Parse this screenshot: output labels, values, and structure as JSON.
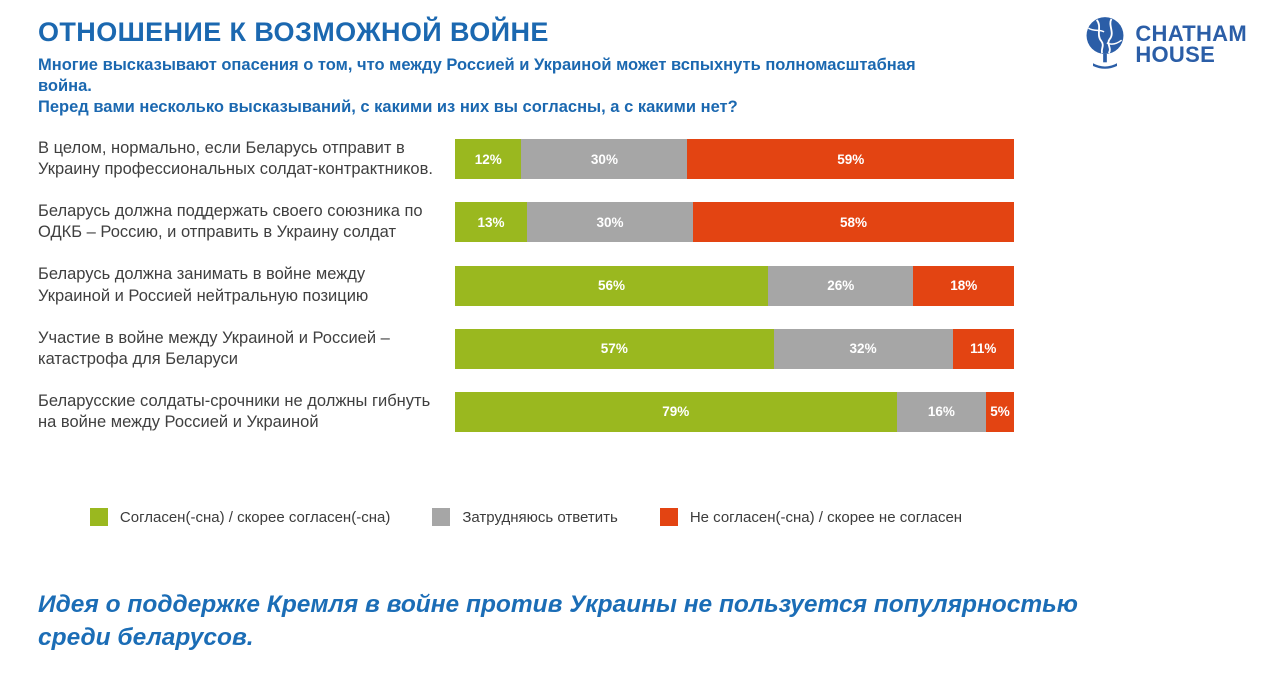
{
  "header": {
    "title": "ОТНОШЕНИЕ К ВОЗМОЖНОЙ ВОЙНЕ",
    "subtitle_line1": "Многие высказывают опасения о том, что между Россией и Украиной может вспыхнуть полномасштабная война.",
    "subtitle_line2": "Перед вами несколько высказываний, с какими из них вы согласны, а с какими нет?"
  },
  "logo": {
    "line1": "CHATHAM",
    "line2": "HOUSE",
    "color": "#2b5ea7"
  },
  "chart_data": {
    "type": "bar",
    "orientation": "horizontal",
    "stacked": true,
    "value_suffix": "%",
    "xlim": [
      0,
      100
    ],
    "grid": false,
    "legend_position": "bottom",
    "categories": [
      "В целом, нормально, если Беларусь отправит в Украину профессиональных солдат-контрактников.",
      "Беларусь должна поддержать своего союзника по ОДКБ – Россию, и отправить в Украину солдат",
      "Беларусь должна занимать в войне между Украиной и Россией нейтральную позицию",
      "Участие в войне между Украиной и Россией – катастрофа для Беларуси",
      "Беларусские солдаты-срочники не должны гибнуть на войне между Россией и Украиной"
    ],
    "series": [
      {
        "key": "agree",
        "name": "Согласен(-сна) / скорее согласен(-сна)",
        "color": "#9ab81f",
        "values": [
          12,
          13,
          56,
          57,
          79
        ]
      },
      {
        "key": "undecided",
        "name": "Затрудняюсь ответить",
        "color": "#a6a6a6",
        "values": [
          30,
          30,
          26,
          32,
          16
        ]
      },
      {
        "key": "disagree",
        "name": "Не согласен(-сна) / скорее не согласен",
        "color": "#e34412",
        "values": [
          59,
          58,
          18,
          11,
          5
        ]
      }
    ]
  },
  "legend": {
    "items": [
      {
        "key": "agree",
        "label": "Согласен(-сна) / скорее согласен(-сна)",
        "color": "#9ab81f"
      },
      {
        "key": "undecided",
        "label": "Затрудняюсь ответить",
        "color": "#a6a6a6"
      },
      {
        "key": "disagree",
        "label": "Не согласен(-сна) / скорее не согласен",
        "color": "#e34412"
      }
    ]
  },
  "conclusion": "Идея о поддержке Кремля в войне против Украины не пользуется популярностью среди беларусов."
}
